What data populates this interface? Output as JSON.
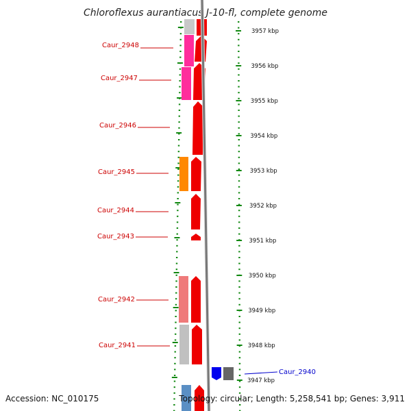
{
  "title": "Chloroflexus aurantiacus J-10-fl, complete genome",
  "accession": "Accession: NC_010175",
  "summary": "Topology: circular; Length: 5,258,541 bp; Genes: 3,911",
  "scale_labels": [
    "3957 kbp",
    "3956 kbp",
    "3955 kbp",
    "3954 kbp",
    "3953 kbp",
    "3952 kbp",
    "3951 kbp",
    "3950 kbp",
    "3949 kbp",
    "3948 kbp",
    "3947 kbp"
  ],
  "gene_labels": [
    {
      "text": "Caur_2948",
      "color": "#cc0000"
    },
    {
      "text": "Caur_2947",
      "color": "#cc0000"
    },
    {
      "text": "Caur_2946",
      "color": "#cc0000"
    },
    {
      "text": "Caur_2945",
      "color": "#cc0000"
    },
    {
      "text": "Caur_2944",
      "color": "#cc0000"
    },
    {
      "text": "Caur_2943",
      "color": "#cc0000"
    },
    {
      "text": "Caur_2942",
      "color": "#cc0000"
    },
    {
      "text": "Caur_2941",
      "color": "#cc0000"
    },
    {
      "text": "Caur_2940",
      "color": "#0000cc"
    }
  ],
  "colors": {
    "tick": "#118811",
    "backbone": "#777777",
    "gene_red": "#ee0000",
    "pink": "#ee3399",
    "orange": "#ff8800",
    "salmon": "#ee7777",
    "grey": "#bbbbbb",
    "blue": "#0000ee",
    "darkgrey": "#666666",
    "steelblue": "#5588bb"
  }
}
